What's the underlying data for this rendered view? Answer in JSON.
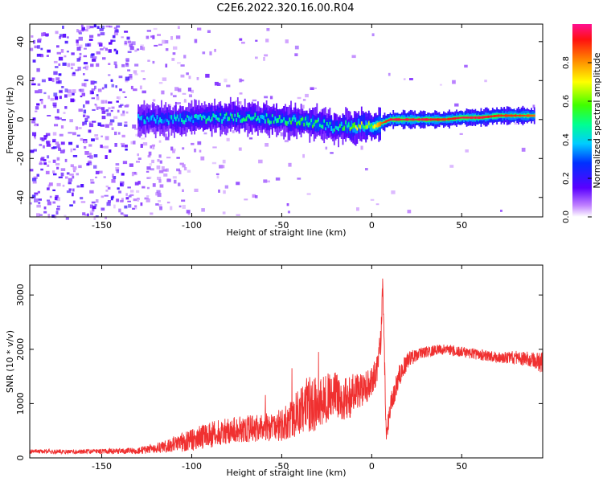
{
  "title": "C2E6.2022.320.16.00.R04",
  "chart_data": [
    {
      "type": "heatmap",
      "xlabel": "Height of straight line (km)",
      "ylabel": "Frequency (Hz)",
      "xlim": [
        -190,
        95
      ],
      "ylim": [
        -50,
        49
      ],
      "xticks": [
        -150,
        -100,
        -50,
        0,
        50
      ],
      "yticks": [
        -40,
        -20,
        0,
        20,
        40
      ],
      "colorbar": {
        "label": "Normalized spectral amplitude",
        "range": [
          0,
          1
        ],
        "ticks": [
          "0.0",
          "0.2",
          "0.4",
          "0.6",
          "0.8"
        ],
        "tick_values": [
          0,
          0.2,
          0.4,
          0.6,
          0.8
        ]
      },
      "ridge": {
        "x": [
          -130,
          -110,
          -90,
          -70,
          -50,
          -40,
          -30,
          -25,
          -20,
          -15,
          -10,
          -5,
          0,
          5,
          10,
          20,
          30,
          40,
          50,
          60,
          70,
          80,
          90
        ],
        "freq": [
          0,
          0,
          1,
          1,
          0,
          -1,
          -2,
          -3,
          -5,
          -3,
          -4,
          -3,
          -4,
          -2,
          0,
          0,
          0,
          0,
          1,
          1,
          2,
          2,
          2
        ],
        "amplitude": [
          0.35,
          0.4,
          0.45,
          0.45,
          0.45,
          0.5,
          0.5,
          0.45,
          0.45,
          0.5,
          0.6,
          0.6,
          0.65,
          0.85,
          0.95,
          0.95,
          0.95,
          0.9,
          0.95,
          0.95,
          0.9,
          0.9,
          0.85
        ]
      },
      "grid": false
    },
    {
      "type": "line",
      "xlabel": "Height of straight line (km)",
      "ylabel": "SNR (10 * v/v)",
      "xlim": [
        -190,
        95
      ],
      "ylim": [
        0,
        3550
      ],
      "xticks": [
        -150,
        -100,
        -50,
        0,
        50
      ],
      "yticks": [
        0,
        1000,
        2000,
        3000
      ],
      "series": [
        {
          "color": "#f03030",
          "x": [
            -190,
            -170,
            -150,
            -130,
            -120,
            -110,
            -100,
            -90,
            -80,
            -70,
            -60,
            -50,
            -45,
            -40,
            -35,
            -30,
            -25,
            -20,
            -15,
            -10,
            -5,
            0,
            3,
            5,
            6,
            7,
            8,
            10,
            15,
            20,
            25,
            30,
            40,
            50,
            60,
            70,
            80,
            90,
            95
          ],
          "values": [
            120,
            115,
            120,
            130,
            180,
            250,
            330,
            420,
            500,
            530,
            560,
            600,
            720,
            850,
            1000,
            1000,
            1100,
            1150,
            1100,
            1150,
            1250,
            1400,
            1600,
            2100,
            3200,
            2000,
            400,
            900,
            1500,
            1800,
            1900,
            1950,
            2000,
            1950,
            1900,
            1850,
            1850,
            1800,
            1750
          ],
          "noise": [
            40,
            40,
            45,
            60,
            90,
            150,
            200,
            250,
            250,
            250,
            250,
            300,
            350,
            450,
            550,
            500,
            450,
            450,
            400,
            400,
            300,
            300,
            300,
            300,
            200,
            300,
            200,
            200,
            200,
            150,
            120,
            100,
            100,
            100,
            100,
            100,
            120,
            150,
            200
          ]
        }
      ],
      "grid": false
    }
  ]
}
